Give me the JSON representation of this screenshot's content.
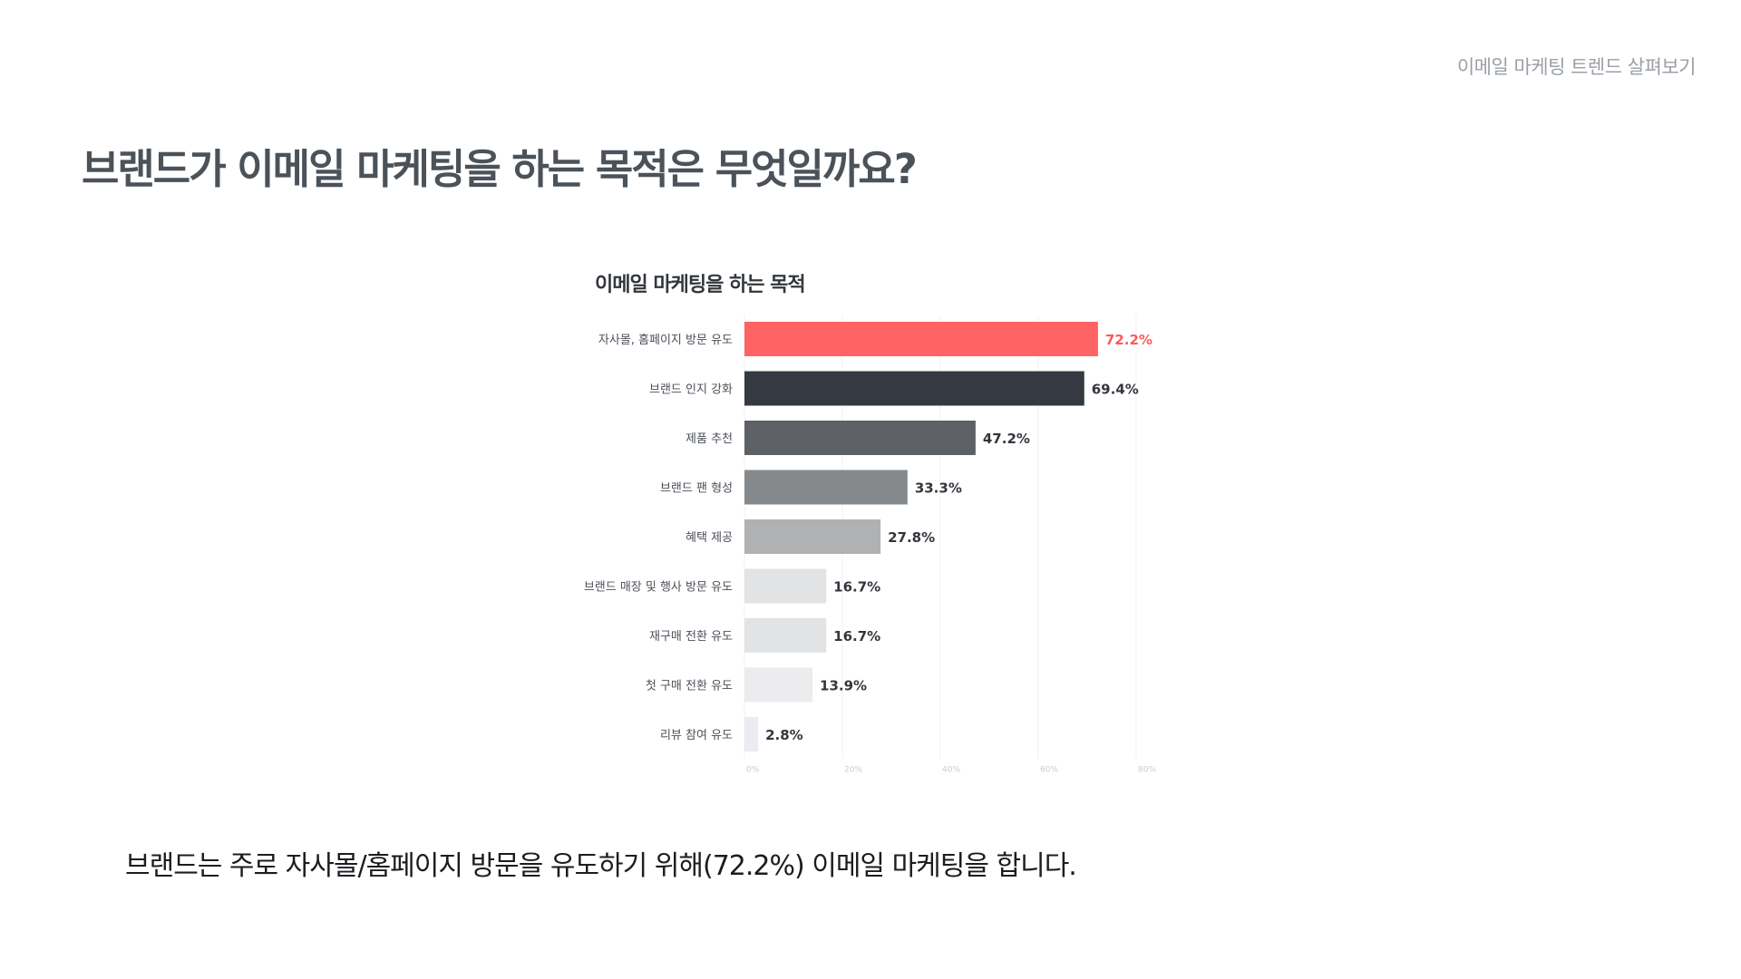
{
  "header": {
    "section_label": "이메일 마케팅 트렌드 살펴보기"
  },
  "page": {
    "title": "브랜드가 이메일 마케팅을 하는 목적은 무엇일까요?",
    "caption": "브랜드는 주로 자사몰/홈페이지 방문을 유도하기 위해(72.2%) 이메일 마케팅을 합니다."
  },
  "chart_data": {
    "type": "bar",
    "orientation": "horizontal",
    "title": "이메일 마케팅을 하는 목적",
    "xlabel": "",
    "ylabel": "",
    "xlim": [
      0,
      80
    ],
    "x_ticks": [
      "0%",
      "20%",
      "40%",
      "60%",
      "80%"
    ],
    "grid": true,
    "categories": [
      "자사몰, 홈페이지 방문 유도",
      "브랜드 인지 강화",
      "제품 추천",
      "브랜드 팬 형성",
      "혜택 제공",
      "브랜드 매장 및 행사 방문 유도",
      "재구매 전환 유도",
      "첫 구매 전환 유도",
      "리뷰 참여 유도"
    ],
    "values": [
      72.2,
      69.4,
      47.2,
      33.3,
      27.8,
      16.7,
      16.7,
      13.9,
      2.8
    ],
    "value_labels": [
      "72.2%",
      "69.4%",
      "47.2%",
      "33.3%",
      "27.8%",
      "16.7%",
      "16.7%",
      "13.9%",
      "2.8%"
    ],
    "colors": [
      "#ff6363",
      "#353a42",
      "#5d6166",
      "#86898c",
      "#b0b1b2",
      "#e2e3e5",
      "#e2e3e5",
      "#ececee",
      "#ebebf0"
    ],
    "label_colors": [
      "#ff5a5a",
      "#33373d",
      "#33373d",
      "#33373d",
      "#33373d",
      "#33373d",
      "#33373d",
      "#33373d",
      "#33373d"
    ]
  }
}
